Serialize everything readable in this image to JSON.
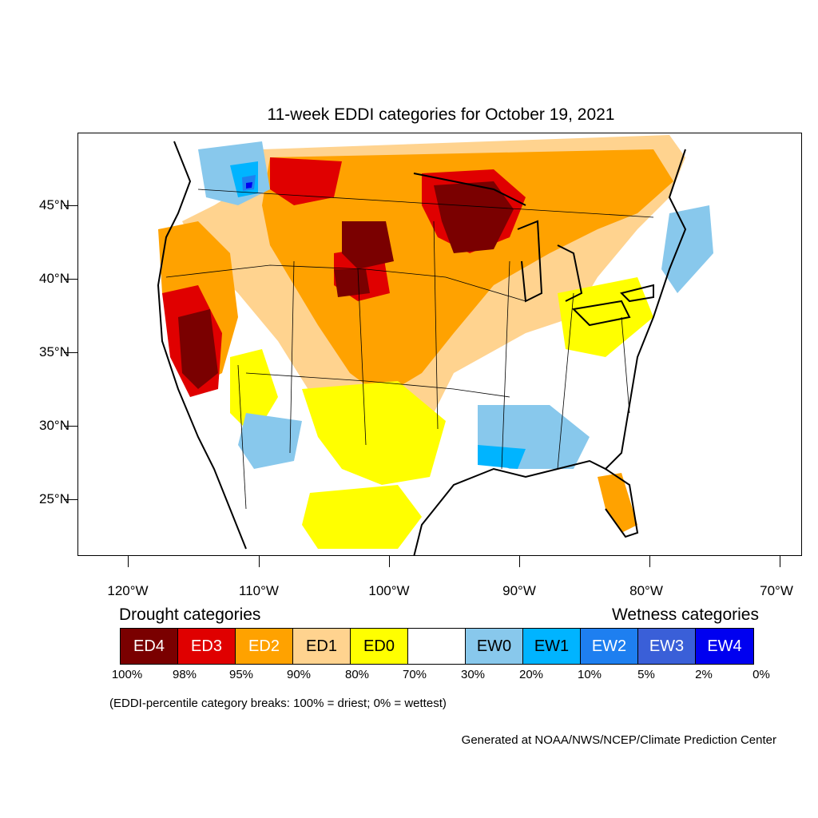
{
  "title": "11-week EDDI categories for October 19, 2021",
  "map": {
    "lat_labels": [
      "45°N",
      "40°N",
      "35°N",
      "30°N",
      "25°N"
    ],
    "lon_labels": [
      "120°W",
      "110°W",
      "100°W",
      "90°W",
      "80°W",
      "70°W"
    ]
  },
  "legend": {
    "drought_heading": "Drought categories",
    "wetness_heading": "Wetness categories",
    "categories": [
      {
        "label": "ED4",
        "color": "#7a0000",
        "text_color": "#ffffff"
      },
      {
        "label": "ED3",
        "color": "#e00000",
        "text_color": "#ffffff"
      },
      {
        "label": "ED2",
        "color": "#ffa200",
        "text_color": "#ffffff"
      },
      {
        "label": "ED1",
        "color": "#ffd38f",
        "text_color": "#000000"
      },
      {
        "label": "ED0",
        "color": "#ffff00",
        "text_color": "#000000"
      },
      {
        "label": "",
        "color": "#ffffff",
        "text_color": "#000000"
      },
      {
        "label": "EW0",
        "color": "#88c8ec",
        "text_color": "#000000"
      },
      {
        "label": "EW1",
        "color": "#00b4ff",
        "text_color": "#000000"
      },
      {
        "label": "EW2",
        "color": "#1e7ff0",
        "text_color": "#ffffff"
      },
      {
        "label": "EW3",
        "color": "#3a5fd8",
        "text_color": "#ffffff"
      },
      {
        "label": "EW4",
        "color": "#0000f0",
        "text_color": "#ffffff"
      }
    ],
    "percentiles": [
      "100%",
      "98%",
      "95%",
      "90%",
      "80%",
      "70%",
      "30%",
      "20%",
      "10%",
      "5%",
      "2%",
      "0%"
    ],
    "note": "(EDDI-percentile category breaks: 100% = driest; 0% = wettest)"
  },
  "credit": "Generated at NOAA/NWS/NCEP/Climate Prediction Center"
}
